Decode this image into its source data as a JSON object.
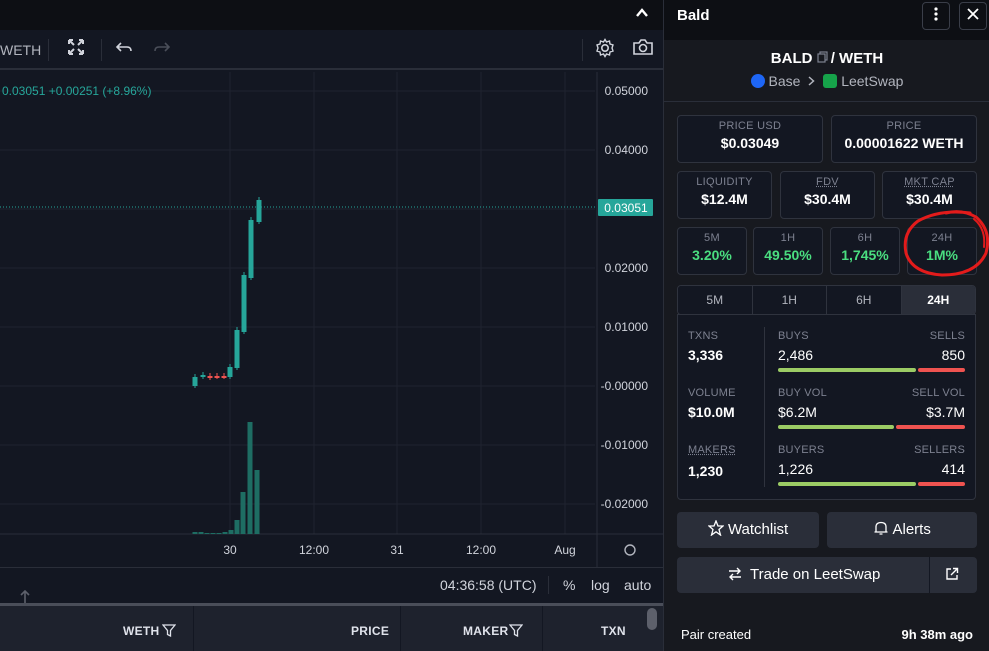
{
  "toolbar": {
    "symbol": "WETH"
  },
  "legend": {
    "text": "0.03051 +0.00251 (+8.96%)"
  },
  "price_axis": {
    "ticks": [
      "0.05000",
      "0.04000",
      "0.02000",
      "0.01000",
      "-0.00000",
      "-0.01000",
      "-0.02000"
    ],
    "current": "0.03051"
  },
  "time_axis": {
    "ticks": [
      "30",
      "12:00",
      "31",
      "12:00",
      "Aug"
    ]
  },
  "bottom_bar": {
    "time": "04:36:58 (UTC)",
    "opt_percent": "%",
    "opt_log": "log",
    "opt_auto": "auto"
  },
  "tx_header": {
    "col_weth": "WETH",
    "col_price": "PRICE",
    "col_maker": "MAKER",
    "col_txn": "TXN"
  },
  "panel": {
    "title": "Bald",
    "pair_base": "BALD",
    "pair_sep": "/",
    "pair_quote": "WETH",
    "chain": "Base",
    "dex": "LeetSwap",
    "price_usd_label": "PRICE USD",
    "price_usd": "$0.03049",
    "price_label": "PRICE",
    "price": "0.00001622 WETH",
    "liquidity_label": "LIQUIDITY",
    "liquidity": "$12.4M",
    "fdv_label": "FDV",
    "fdv": "$30.4M",
    "mktcap_label": "MKT CAP",
    "mktcap": "$30.4M",
    "changes": [
      {
        "label": "5M",
        "value": "3.20%"
      },
      {
        "label": "1H",
        "value": "49.50%"
      },
      {
        "label": "6H",
        "value": "1,745%"
      },
      {
        "label": "24H",
        "value": "1M%"
      }
    ],
    "tabs": [
      "5M",
      "1H",
      "6H",
      "24H"
    ],
    "stats": {
      "txns_label": "TXNS",
      "txns": "3,336",
      "buys_label": "BUYS",
      "buys": "2,486",
      "sells_label": "SELLS",
      "sells": "850",
      "volume_label": "VOLUME",
      "volume": "$10.0M",
      "buyvol_label": "BUY VOL",
      "buyvol": "$6.2M",
      "sellvol_label": "SELL VOL",
      "sellvol": "$3.7M",
      "makers_label": "MAKERS",
      "makers": "1,230",
      "buyers_label": "BUYERS",
      "buyers": "1,226",
      "sellers_label": "SELLERS",
      "sellers": "414"
    },
    "watchlist": "Watchlist",
    "alerts": "Alerts",
    "trade": "Trade on LeetSwap",
    "pair_created_label": "Pair created",
    "pair_created_value": "9h 38m ago"
  },
  "colors": {
    "up": "#26a69a",
    "down": "#ef5350",
    "green_text": "#4ade80"
  }
}
